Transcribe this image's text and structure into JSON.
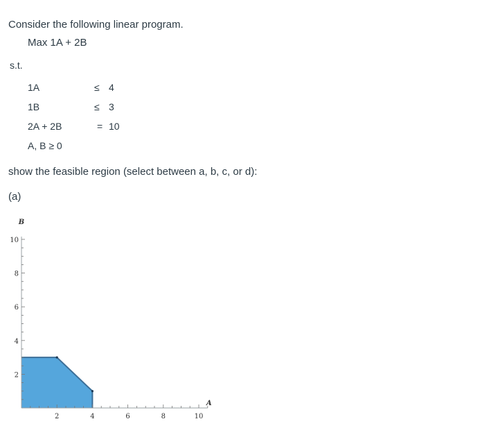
{
  "intro": "Consider the following linear program.",
  "objective": "Max 1A + 2B",
  "st_label": "s.t.",
  "constraints": [
    {
      "lhs": "1A",
      "op": "≤",
      "rhs": "4"
    },
    {
      "lhs": "1B",
      "op": "≤",
      "rhs": "3"
    },
    {
      "lhs": "2A + 2B",
      "op": "=",
      "rhs": "10"
    }
  ],
  "nonneg": "A, B ≥ 0",
  "prompt": "show the feasible region (select between a, b, c, or d):",
  "option_label": "(a)",
  "chart_data": {
    "type": "area",
    "xlabel": "A",
    "ylabel": "B",
    "xlim": [
      0,
      10.5
    ],
    "ylim": [
      0,
      10
    ],
    "x_ticks": [
      2,
      4,
      6,
      8,
      10
    ],
    "y_ticks": [
      2,
      4,
      6,
      8,
      10
    ],
    "region": [
      [
        0,
        0
      ],
      [
        0,
        3
      ],
      [
        2,
        3
      ],
      [
        4,
        1
      ],
      [
        4,
        0
      ]
    ],
    "fill_color": "#55a6dc",
    "edge_color": "#3d6f98"
  }
}
